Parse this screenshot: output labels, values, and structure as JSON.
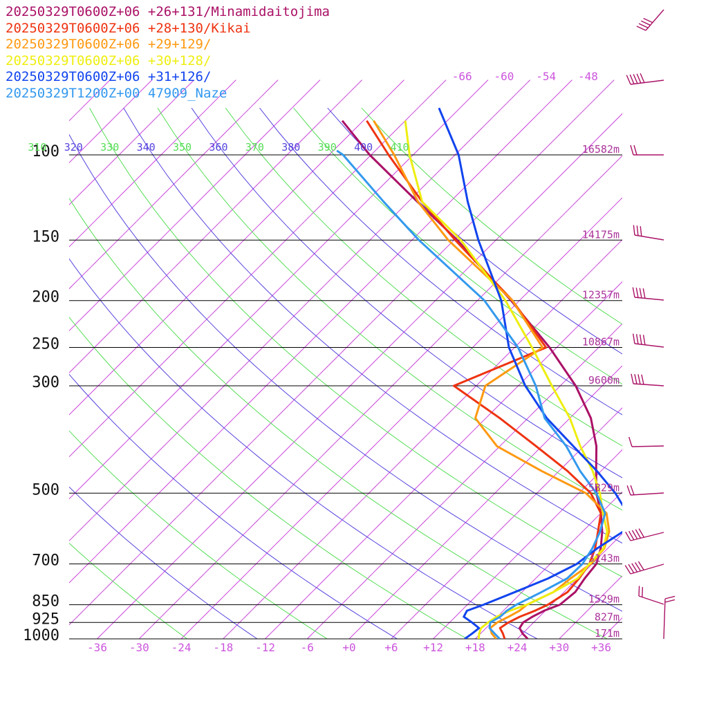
{
  "chart_data": {
    "type": "line",
    "legend": [
      {
        "label": "20250329T0600Z+06 +26+131/Minamidaitojima",
        "color": "#aa1166"
      },
      {
        "label": "20250329T0600Z+06 +28+130/Kikai",
        "color": "#ee3311"
      },
      {
        "label": "20250329T0600Z+06 +29+129/",
        "color": "#ff9911"
      },
      {
        "label": "20250329T0600Z+06 +30+128/",
        "color": "#eeee11"
      },
      {
        "label": "20250329T0600Z+06 +31+126/",
        "color": "#1144ee"
      },
      {
        "label": "20250329T1200Z+00 47909_Naze",
        "color": "#3399ee"
      }
    ],
    "pressure_levels": [
      {
        "label": "100",
        "p": 100,
        "height": "16582m"
      },
      {
        "label": "150",
        "p": 150,
        "height": "14175m"
      },
      {
        "label": "200",
        "p": 200,
        "height": "12357m"
      },
      {
        "label": "250",
        "p": 250,
        "height": "10867m"
      },
      {
        "label": "300",
        "p": 300,
        "height": "9600m"
      },
      {
        "label": "500",
        "p": 500,
        "height": "5829m"
      },
      {
        "label": "700",
        "p": 700,
        "height": "3143m"
      },
      {
        "label": "850",
        "p": 850,
        "height": "1529m"
      },
      {
        "label": "925",
        "p": 925,
        "height": "827m"
      },
      {
        "label": "1000",
        "p": 1000,
        "height": "171m"
      }
    ],
    "temperature_ticks": [
      "-36",
      "-30",
      "-24",
      "-18",
      "-12",
      "-6",
      "+0",
      "+6",
      "+12",
      "+18",
      "+24",
      "+30",
      "+36"
    ],
    "temperature_tick_values": [
      -36,
      -30,
      -24,
      -18,
      -12,
      -6,
      0,
      6,
      12,
      18,
      24,
      30,
      36
    ],
    "upper_isotherm_labels": [
      "-66",
      "-60",
      "-54",
      "-48"
    ],
    "upper_isotherm_values": [
      -66,
      -60,
      -54,
      -48
    ],
    "theta_labels": [
      "310",
      "320",
      "330",
      "340",
      "350",
      "360",
      "370",
      "380",
      "390",
      "400",
      "410"
    ],
    "theta_values": [
      310,
      320,
      330,
      340,
      350,
      360,
      370,
      380,
      390,
      400,
      410
    ],
    "temp_range": [
      -40,
      39
    ],
    "pressure_range": [
      1000,
      100
    ],
    "series": [
      {
        "color": "#aa1166",
        "temperature": [
          [
            1000,
            25.5
          ],
          [
            975,
            24.0
          ],
          [
            950,
            22.8
          ],
          [
            925,
            22.5
          ],
          [
            900,
            23.0
          ],
          [
            875,
            23.8
          ],
          [
            850,
            25.2
          ],
          [
            800,
            25.6
          ],
          [
            750,
            25.0
          ],
          [
            700,
            24.6
          ],
          [
            650,
            23.0
          ],
          [
            600,
            20.8
          ],
          [
            550,
            18.0
          ],
          [
            500,
            14.5
          ],
          [
            450,
            11.3
          ],
          [
            400,
            7.8
          ],
          [
            350,
            3.0
          ],
          [
            300,
            -3.8
          ],
          [
            250,
            -13.0
          ],
          [
            200,
            -25.2
          ],
          [
            150,
            -41.5
          ],
          [
            125,
            -52.7
          ],
          [
            100,
            -66.2
          ],
          [
            85,
            -75.0
          ]
        ]
      },
      {
        "color": "#ee3311",
        "temperature": [
          [
            1000,
            22.2
          ],
          [
            975,
            21.2
          ],
          [
            950,
            20.0
          ],
          [
            925,
            20.4
          ],
          [
            900,
            21.2
          ],
          [
            875,
            22.5
          ],
          [
            850,
            23.5
          ],
          [
            800,
            24.5
          ],
          [
            750,
            24.2
          ],
          [
            700,
            23.6
          ],
          [
            650,
            22.2
          ],
          [
            600,
            20.2
          ],
          [
            550,
            18.0
          ],
          [
            500,
            13.7
          ],
          [
            450,
            7.2
          ],
          [
            400,
            -0.8
          ],
          [
            350,
            -10.0
          ],
          [
            300,
            -21.2
          ],
          [
            250,
            -13.5
          ],
          [
            200,
            -25.0
          ],
          [
            150,
            -41.8
          ],
          [
            125,
            -52.0
          ],
          [
            100,
            -63.5
          ],
          [
            85,
            -71.5
          ]
        ]
      },
      {
        "color": "#ff9911",
        "temperature": [
          [
            1000,
            21.0
          ],
          [
            975,
            19.6
          ],
          [
            950,
            18.6
          ],
          [
            925,
            18.8
          ],
          [
            900,
            19.6
          ],
          [
            875,
            20.3
          ],
          [
            850,
            20.5
          ],
          [
            800,
            22.5
          ],
          [
            750,
            23.0
          ],
          [
            700,
            23.8
          ],
          [
            650,
            23.5
          ],
          [
            600,
            21.8
          ],
          [
            550,
            18.8
          ],
          [
            500,
            13.0
          ],
          [
            450,
            3.5
          ],
          [
            400,
            -6.4
          ],
          [
            350,
            -13.5
          ],
          [
            300,
            -16.7
          ],
          [
            250,
            -14.0
          ],
          [
            200,
            -25.0
          ],
          [
            150,
            -42.8
          ],
          [
            125,
            -52.6
          ],
          [
            100,
            -62.7
          ],
          [
            85,
            -70.5
          ]
        ]
      },
      {
        "color": "#eeee11",
        "temperature": [
          [
            1000,
            18.5
          ],
          [
            975,
            17.8
          ],
          [
            950,
            17.3
          ],
          [
            925,
            17.5
          ],
          [
            900,
            17.9
          ],
          [
            875,
            18.9
          ],
          [
            850,
            20.5
          ],
          [
            800,
            22.5
          ],
          [
            750,
            24.0
          ],
          [
            700,
            23.6
          ],
          [
            650,
            23.4
          ],
          [
            600,
            21.5
          ],
          [
            550,
            18.3
          ],
          [
            500,
            15.0
          ],
          [
            450,
            10.8
          ],
          [
            400,
            5.5
          ],
          [
            350,
            0.0
          ],
          [
            300,
            -7.2
          ],
          [
            250,
            -15.5
          ],
          [
            200,
            -26.0
          ],
          [
            150,
            -41.0
          ],
          [
            125,
            -52.0
          ],
          [
            100,
            -60.5
          ],
          [
            85,
            -66.0
          ]
        ]
      },
      {
        "color": "#1144ee",
        "temperature": [
          [
            1000,
            16.5
          ],
          [
            975,
            16.8
          ],
          [
            950,
            17.0
          ],
          [
            925,
            15.2
          ],
          [
            900,
            13.2
          ],
          [
            875,
            12.8
          ],
          [
            850,
            14.3
          ],
          [
            800,
            17.0
          ],
          [
            750,
            19.8
          ],
          [
            700,
            21.8
          ],
          [
            650,
            22.5
          ],
          [
            600,
            23.8
          ],
          [
            550,
            21.8
          ],
          [
            500,
            17.2
          ],
          [
            450,
            11.4
          ],
          [
            400,
            4.5
          ],
          [
            350,
            -3.3
          ],
          [
            300,
            -11.0
          ],
          [
            250,
            -18.8
          ],
          [
            200,
            -26.6
          ],
          [
            150,
            -38.5
          ],
          [
            125,
            -45.5
          ],
          [
            100,
            -53.5
          ],
          [
            80,
            -63.0
          ]
        ]
      },
      {
        "color": "#3399ee",
        "temperature": [
          [
            1000,
            21.5
          ],
          [
            975,
            20.0
          ],
          [
            950,
            18.5
          ],
          [
            925,
            17.8
          ],
          [
            900,
            18.4
          ],
          [
            875,
            18.5
          ],
          [
            850,
            19.0
          ],
          [
            800,
            20.8
          ],
          [
            750,
            22.5
          ],
          [
            700,
            22.6
          ],
          [
            650,
            21.8
          ],
          [
            600,
            20.5
          ],
          [
            550,
            18.6
          ],
          [
            500,
            14.5
          ],
          [
            450,
            9.0
          ],
          [
            400,
            3.5
          ],
          [
            350,
            -3.6
          ],
          [
            300,
            -9.5
          ],
          [
            250,
            -17.5
          ],
          [
            200,
            -29.0
          ],
          [
            150,
            -47.0
          ],
          [
            125,
            -57.5
          ],
          [
            100,
            -70.0
          ],
          [
            98,
            -71.5
          ]
        ]
      }
    ]
  }
}
